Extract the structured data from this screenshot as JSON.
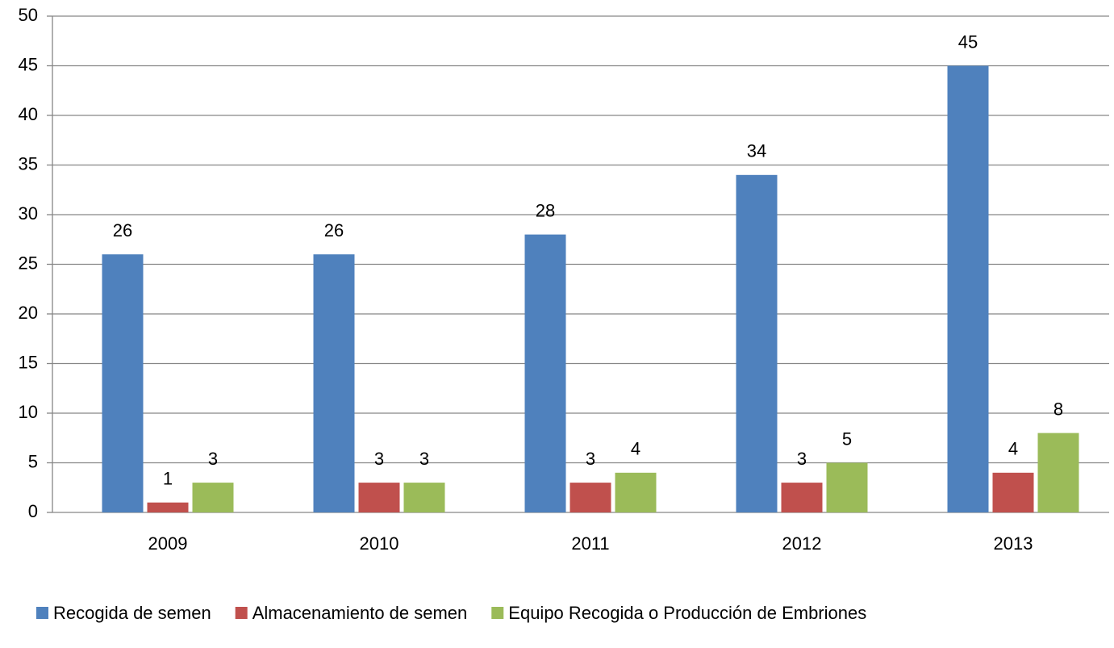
{
  "chart_data": {
    "type": "bar",
    "categories": [
      "2009",
      "2010",
      "2011",
      "2012",
      "2013"
    ],
    "series": [
      {
        "name": "Recogida de semen",
        "color": "#4f81bd",
        "values": [
          26,
          26,
          28,
          34,
          45
        ]
      },
      {
        "name": "Almacenamiento de semen",
        "color": "#c0504d",
        "values": [
          1,
          3,
          3,
          3,
          4
        ]
      },
      {
        "name": "Equipo Recogida o Producción de Embriones",
        "color": "#9bbb59",
        "values": [
          3,
          3,
          4,
          5,
          8
        ]
      }
    ],
    "ylim": [
      0,
      50
    ],
    "yticks": [
      0,
      5,
      10,
      15,
      20,
      25,
      30,
      35,
      40,
      45,
      50
    ],
    "grid": true,
    "legend": "bottom"
  }
}
